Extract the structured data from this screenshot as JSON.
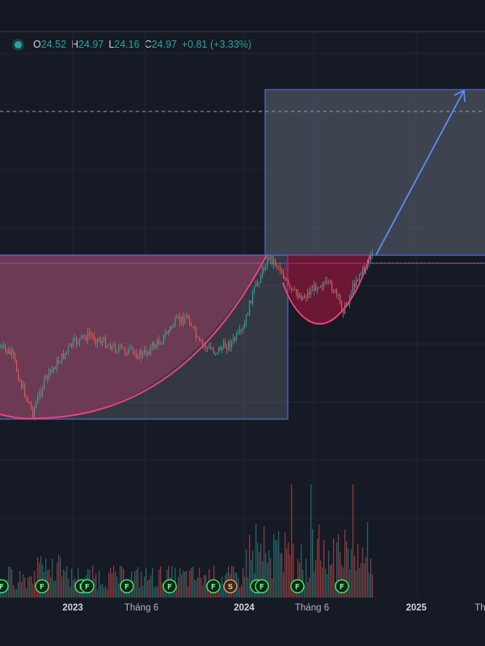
{
  "legend": {
    "o_label": "O",
    "o_value": "24.52",
    "h_label": "H",
    "h_value": "24.97",
    "l_label": "L",
    "l_value": "24.16",
    "c_label": "C",
    "c_value": "24.97",
    "change": "+0.81 (+3.33%)"
  },
  "colors": {
    "background": "#161a25",
    "up": "#26a69a",
    "down": "#ef5350",
    "cup_curve": "#f23f7c",
    "target_box": "#5b6b9a",
    "arrow": "#5b8cff",
    "grid": "#222632"
  },
  "chart_data": {
    "type": "candlestick",
    "x_axis": {
      "tick_labels": [
        "2023",
        "Tháng 6",
        "2024",
        "Tháng 6",
        "2025",
        "Th"
      ],
      "bold_ticks": [
        "2023",
        "2024",
        "2025"
      ]
    },
    "last_close": 24.97,
    "annotations": {
      "pattern": "cup-and-handle",
      "cup_rim": "2024-02",
      "cup_bottom": "2022-11",
      "handle_bottom": "2024-06",
      "breakout": "2024-10",
      "target_arrow": "projected up into 2025"
    },
    "event_markers": {
      "F_count": 11,
      "S_count": 1,
      "labels": [
        "F",
        "F",
        "F",
        "F",
        "F",
        "F",
        "F",
        "S",
        "F",
        "F",
        "F",
        "F"
      ]
    }
  }
}
